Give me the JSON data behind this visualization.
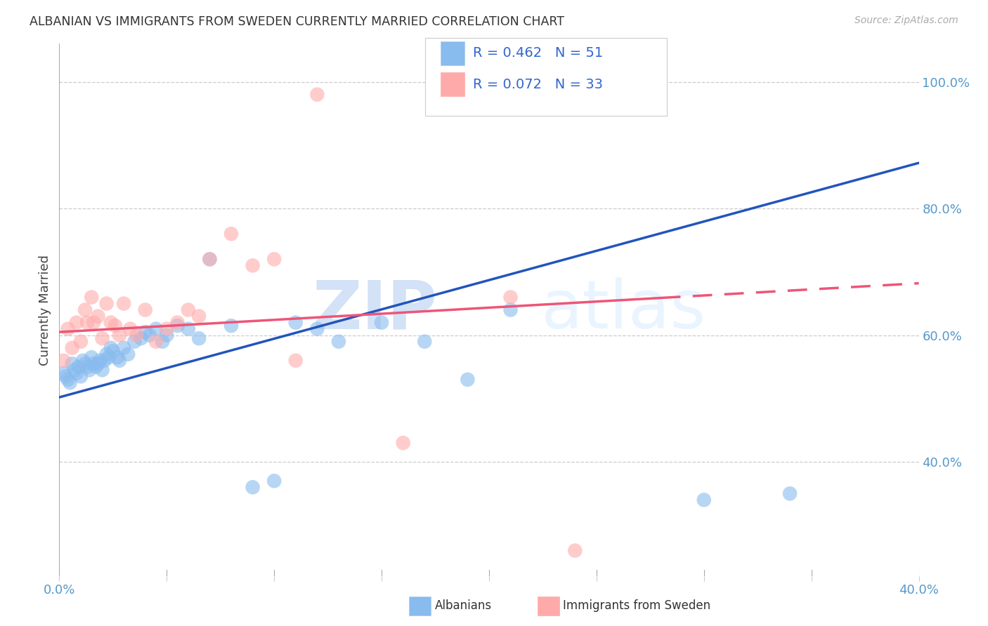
{
  "title": "ALBANIAN VS IMMIGRANTS FROM SWEDEN CURRENTLY MARRIED CORRELATION CHART",
  "source": "Source: ZipAtlas.com",
  "ylabel": "Currently Married",
  "xlim": [
    0.0,
    0.4
  ],
  "ylim": [
    0.22,
    1.06
  ],
  "yticks_right": [
    0.4,
    0.6,
    0.8,
    1.0
  ],
  "ytick_labels_right": [
    "40.0%",
    "60.0%",
    "80.0%",
    "100.0%"
  ],
  "blue_R": 0.462,
  "blue_N": 51,
  "pink_R": 0.072,
  "pink_N": 33,
  "blue_color": "#88BBEE",
  "pink_color": "#FFAAAA",
  "blue_line_color": "#2255BB",
  "pink_line_color": "#EE5577",
  "axis_color": "#5599CC",
  "legend_R_N_color": "#3366CC",
  "blue_line_x0": 0.0,
  "blue_line_y0": 0.502,
  "blue_line_x1": 0.4,
  "blue_line_y1": 0.872,
  "pink_line_x0": 0.0,
  "pink_line_y0": 0.605,
  "pink_line_x1": 0.4,
  "pink_line_y1": 0.682,
  "blue_scatter_x": [
    0.002,
    0.003,
    0.004,
    0.005,
    0.006,
    0.007,
    0.008,
    0.009,
    0.01,
    0.011,
    0.012,
    0.013,
    0.014,
    0.015,
    0.016,
    0.017,
    0.018,
    0.019,
    0.02,
    0.021,
    0.022,
    0.023,
    0.024,
    0.025,
    0.027,
    0.028,
    0.03,
    0.032,
    0.035,
    0.038,
    0.04,
    0.042,
    0.045,
    0.048,
    0.05,
    0.055,
    0.06,
    0.065,
    0.07,
    0.08,
    0.09,
    0.1,
    0.11,
    0.12,
    0.13,
    0.15,
    0.17,
    0.19,
    0.21,
    0.3,
    0.34
  ],
  "blue_scatter_y": [
    0.54,
    0.535,
    0.53,
    0.525,
    0.555,
    0.545,
    0.54,
    0.55,
    0.535,
    0.56,
    0.555,
    0.55,
    0.545,
    0.565,
    0.555,
    0.55,
    0.555,
    0.56,
    0.545,
    0.56,
    0.57,
    0.565,
    0.58,
    0.575,
    0.565,
    0.56,
    0.58,
    0.57,
    0.59,
    0.595,
    0.605,
    0.6,
    0.61,
    0.59,
    0.6,
    0.615,
    0.61,
    0.595,
    0.72,
    0.615,
    0.36,
    0.37,
    0.62,
    0.61,
    0.59,
    0.62,
    0.59,
    0.53,
    0.64,
    0.34,
    0.35
  ],
  "pink_scatter_x": [
    0.002,
    0.004,
    0.006,
    0.008,
    0.01,
    0.012,
    0.013,
    0.015,
    0.016,
    0.018,
    0.02,
    0.022,
    0.024,
    0.026,
    0.028,
    0.03,
    0.033,
    0.036,
    0.04,
    0.045,
    0.05,
    0.055,
    0.06,
    0.065,
    0.07,
    0.08,
    0.09,
    0.1,
    0.11,
    0.12,
    0.16,
    0.21,
    0.24
  ],
  "pink_scatter_y": [
    0.56,
    0.61,
    0.58,
    0.62,
    0.59,
    0.64,
    0.62,
    0.66,
    0.62,
    0.63,
    0.595,
    0.65,
    0.62,
    0.615,
    0.6,
    0.65,
    0.61,
    0.6,
    0.64,
    0.59,
    0.61,
    0.62,
    0.64,
    0.63,
    0.72,
    0.76,
    0.71,
    0.72,
    0.56,
    0.98,
    0.43,
    0.66,
    0.26
  ]
}
